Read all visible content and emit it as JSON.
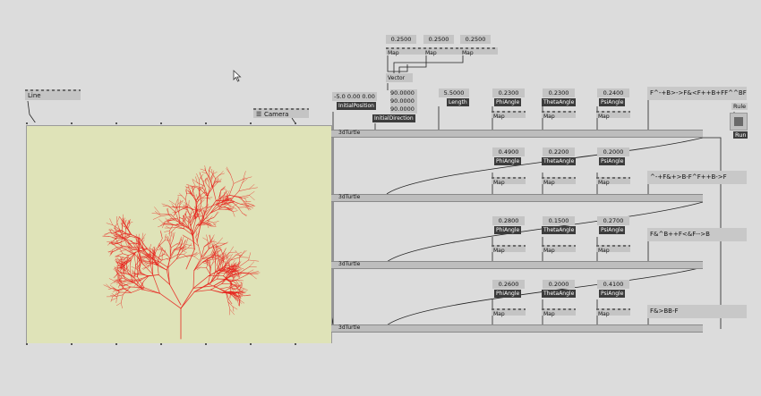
{
  "cursor_icon": "mouse-pointer",
  "line_node": {
    "label": "Line"
  },
  "camera_node": {
    "label": "Camera"
  },
  "top_values": [
    "0.2500",
    "0.2500",
    "0.2500"
  ],
  "map_label": "Map",
  "vector_label": "Vector",
  "initial_position": {
    "value": "-5.0  0.00  0.00",
    "label": "InitialPosition"
  },
  "initial_direction": {
    "values": [
      "90.0000",
      "90.0000",
      "90.0000"
    ],
    "label": "InitialDirection"
  },
  "length": {
    "value": "5.5000",
    "label": "Length"
  },
  "turtle_label": "3dTurtle",
  "rule_button": "Rule",
  "run_button": "Run",
  "angle_labels": {
    "phi": "PhiAngle",
    "theta": "ThetaAngle",
    "psi": "PsiAngle"
  },
  "stages": [
    {
      "phi": "0.2300",
      "theta": "0.2300",
      "psi": "0.2400",
      "rule": "F^-+B>->F&<F++B+FF^^BF"
    },
    {
      "phi": "0.4900",
      "theta": "0.2200",
      "psi": "0.2000",
      "rule": "^-+F&+>B-F^F++B->F"
    },
    {
      "phi": "0.2800",
      "theta": "0.1500",
      "psi": "0.2700",
      "rule": "F&^B++F<&F-->B"
    },
    {
      "phi": "0.2600",
      "theta": "0.2000",
      "psi": "0.4100",
      "rule": "F&>BB-F"
    }
  ],
  "colors": {
    "background": "#dcdcdc",
    "renderer": "#dfe3b8",
    "plant": "#e8201a",
    "node": "#c4c4c4",
    "label": "#3c3c3c"
  }
}
